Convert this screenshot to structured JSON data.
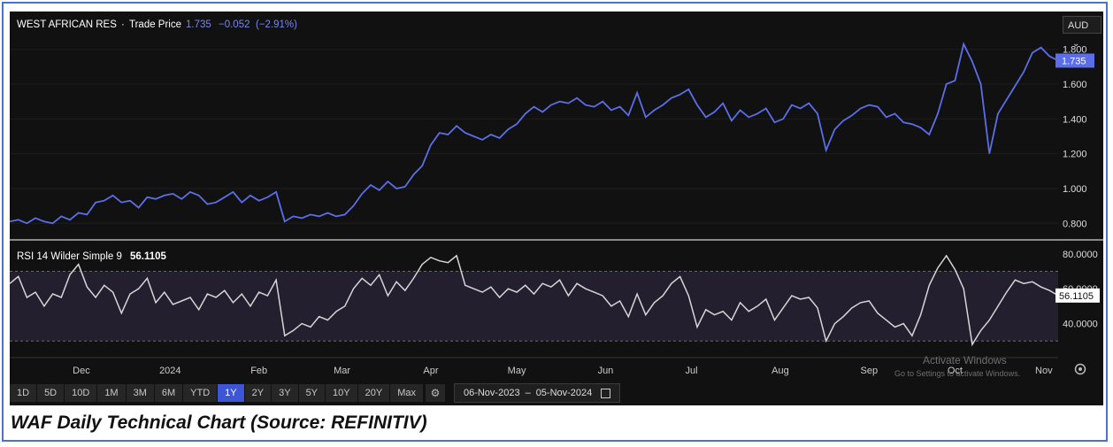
{
  "header": {
    "security": "WEST AFRICAN RES",
    "separator": "·",
    "measure": "Trade Price",
    "price": "1.735",
    "change": "−0.052",
    "change_pct": "(−2.91%)"
  },
  "currency": {
    "label": "AUD",
    "caret": "⌄"
  },
  "price_badge": "1.735",
  "rsi": {
    "label": "RSI 14 Wilder Simple 9",
    "value": "56.1105",
    "badge": "56.1105"
  },
  "toolbar": {
    "timeframes": [
      "1D",
      "5D",
      "10D",
      "1M",
      "3M",
      "6M",
      "YTD",
      "1Y",
      "2Y",
      "3Y",
      "5Y",
      "10Y",
      "20Y",
      "Max"
    ],
    "active": "1Y",
    "date_from": "06-Nov-2023",
    "date_sep": "–",
    "date_to": "05-Nov-2024"
  },
  "watermark": {
    "line1": "Activate Windows",
    "line2": "Go to Settings to activate Windows."
  },
  "caption": "WAF Daily Technical Chart (Source: REFINITIV)",
  "colors": {
    "price_line": "#5b6ee8",
    "rsi_line": "#d6d6d6",
    "background": "#111111",
    "rsi_band": "#241f2e"
  },
  "chart_data": [
    {
      "type": "line",
      "series": [
        {
          "name": "Trade Price",
          "x": [
            0,
            3,
            6,
            9,
            12,
            15,
            18,
            21,
            24,
            27,
            30,
            33,
            36,
            39,
            42,
            45,
            48,
            51,
            54,
            57,
            60,
            63,
            66,
            69,
            72,
            75,
            78,
            81,
            84,
            87,
            90,
            93,
            96,
            99,
            102,
            105,
            108,
            111,
            114,
            117,
            120,
            123,
            126,
            129,
            132,
            135,
            138,
            141,
            144,
            147,
            150,
            153,
            156,
            159,
            162,
            165,
            168,
            171,
            174,
            177,
            180,
            183,
            186,
            189,
            192,
            195,
            198,
            201,
            204,
            207,
            210,
            213,
            216,
            219,
            222,
            225,
            228,
            231,
            234,
            237,
            240,
            243,
            246,
            249,
            252,
            255,
            258,
            261,
            264,
            267,
            270,
            273,
            276,
            279,
            282,
            285,
            288,
            291,
            294,
            297,
            300,
            303,
            306,
            309,
            312,
            315,
            318,
            321,
            324,
            327,
            330,
            333,
            336,
            339,
            342,
            345,
            348,
            351,
            354,
            357,
            360,
            363,
            366
          ],
          "values": [
            0.81,
            0.82,
            0.8,
            0.83,
            0.81,
            0.8,
            0.84,
            0.82,
            0.86,
            0.85,
            0.92,
            0.93,
            0.96,
            0.92,
            0.93,
            0.89,
            0.95,
            0.94,
            0.96,
            0.97,
            0.94,
            0.98,
            0.96,
            0.91,
            0.92,
            0.95,
            0.98,
            0.92,
            0.96,
            0.93,
            0.95,
            0.98,
            0.81,
            0.84,
            0.83,
            0.85,
            0.84,
            0.86,
            0.84,
            0.85,
            0.9,
            0.97,
            1.02,
            0.99,
            1.04,
            1.0,
            1.01,
            1.08,
            1.13,
            1.25,
            1.32,
            1.31,
            1.36,
            1.32,
            1.3,
            1.28,
            1.31,
            1.29,
            1.34,
            1.37,
            1.43,
            1.47,
            1.44,
            1.48,
            1.5,
            1.49,
            1.52,
            1.48,
            1.47,
            1.5,
            1.45,
            1.47,
            1.42,
            1.55,
            1.41,
            1.45,
            1.48,
            1.52,
            1.54,
            1.57,
            1.48,
            1.41,
            1.44,
            1.49,
            1.39,
            1.45,
            1.41,
            1.43,
            1.46,
            1.38,
            1.4,
            1.48,
            1.46,
            1.49,
            1.43,
            1.22,
            1.34,
            1.39,
            1.42,
            1.46,
            1.48,
            1.47,
            1.41,
            1.43,
            1.38,
            1.37,
            1.35,
            1.31,
            1.43,
            1.6,
            1.62,
            1.83,
            1.73,
            1.6,
            1.2,
            1.43,
            1.51,
            1.59,
            1.67,
            1.78,
            1.81,
            1.76,
            1.735
          ]
        }
      ],
      "ylim": [
        0.72,
        1.89
      ],
      "ticks": [
        "0.800",
        "1.000",
        "1.200",
        "1.400",
        "1.600",
        "1.800"
      ],
      "tick_values": [
        0.8,
        1.0,
        1.2,
        1.4,
        1.6,
        1.8
      ]
    },
    {
      "type": "line",
      "series": [
        {
          "name": "RSI 14 Wilder Simple 9",
          "x": [
            0,
            3,
            6,
            9,
            12,
            15,
            18,
            21,
            24,
            27,
            30,
            33,
            36,
            39,
            42,
            45,
            48,
            51,
            54,
            57,
            60,
            63,
            66,
            69,
            72,
            75,
            78,
            81,
            84,
            87,
            90,
            93,
            96,
            99,
            102,
            105,
            108,
            111,
            114,
            117,
            120,
            123,
            126,
            129,
            132,
            135,
            138,
            141,
            144,
            147,
            150,
            153,
            156,
            159,
            162,
            165,
            168,
            171,
            174,
            177,
            180,
            183,
            186,
            189,
            192,
            195,
            198,
            201,
            204,
            207,
            210,
            213,
            216,
            219,
            222,
            225,
            228,
            231,
            234,
            237,
            240,
            243,
            246,
            249,
            252,
            255,
            258,
            261,
            264,
            267,
            270,
            273,
            276,
            279,
            282,
            285,
            288,
            291,
            294,
            297,
            300,
            303,
            306,
            309,
            312,
            315,
            318,
            321,
            324,
            327,
            330,
            333,
            336,
            339,
            342,
            345,
            348,
            351,
            354,
            357,
            360,
            363,
            366
          ],
          "values": [
            63,
            67,
            55,
            58,
            50,
            57,
            55,
            68,
            74,
            61,
            55,
            62,
            58,
            46,
            57,
            60,
            66,
            52,
            58,
            51,
            53,
            55,
            48,
            57,
            55,
            59,
            52,
            57,
            50,
            58,
            56,
            65,
            33,
            36,
            40,
            38,
            44,
            42,
            47,
            50,
            60,
            66,
            62,
            68,
            56,
            64,
            59,
            66,
            74,
            78,
            76,
            75,
            79,
            62,
            60,
            58,
            61,
            55,
            60,
            58,
            62,
            57,
            63,
            61,
            65,
            56,
            63,
            60,
            58,
            56,
            50,
            53,
            44,
            57,
            45,
            52,
            56,
            63,
            67,
            56,
            38,
            48,
            45,
            47,
            42,
            52,
            47,
            50,
            54,
            42,
            49,
            56,
            54,
            55,
            49,
            30,
            40,
            44,
            49,
            52,
            53,
            46,
            42,
            38,
            40,
            33,
            45,
            62,
            72,
            79,
            71,
            60,
            28,
            36,
            42,
            50,
            58,
            65,
            63,
            64,
            61,
            59,
            56.1
          ]
        }
      ],
      "ylim": [
        22,
        86
      ],
      "ticks": [
        "40.0000",
        "60.0000",
        "80.0000"
      ],
      "tick_values": [
        40,
        60,
        80
      ],
      "band": [
        30,
        70
      ]
    },
    {
      "type": "line",
      "x_axis": {
        "labels": [
          "Dec",
          "2024",
          "Feb",
          "Mar",
          "Apr",
          "May",
          "Jun",
          "Jul",
          "Aug",
          "Sep",
          "Oct",
          "Nov"
        ],
        "positions": [
          25,
          56,
          87,
          116,
          147,
          177,
          208,
          238,
          269,
          300,
          330,
          361
        ]
      }
    }
  ]
}
